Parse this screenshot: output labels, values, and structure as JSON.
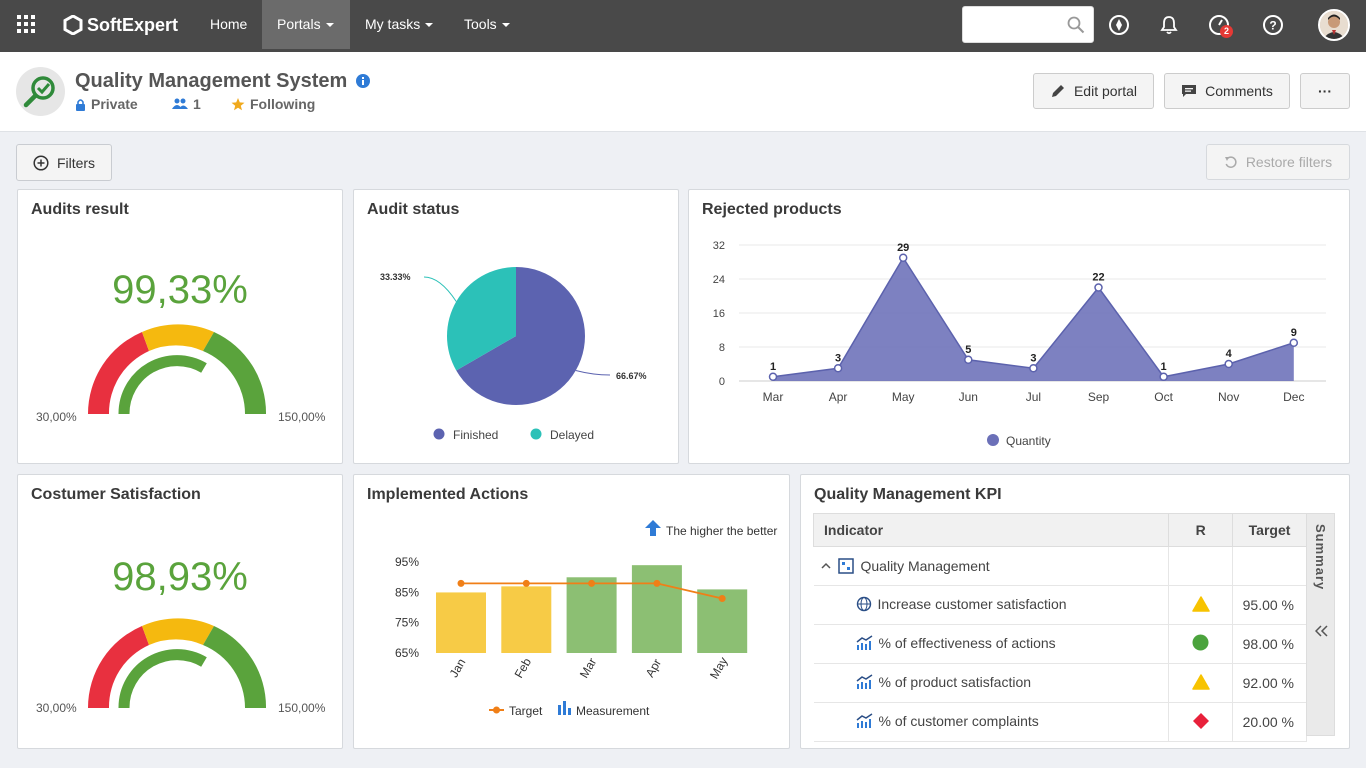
{
  "nav": {
    "brand": "SoftExpert",
    "items": [
      {
        "label": "Home",
        "dropdown": false,
        "active": false
      },
      {
        "label": "Portals",
        "dropdown": true,
        "active": true
      },
      {
        "label": "My tasks",
        "dropdown": true,
        "active": false
      },
      {
        "label": "Tools",
        "dropdown": true,
        "active": false
      }
    ],
    "search_placeholder": "",
    "notifications_badge": "2",
    "colors": {
      "bar": "#494949",
      "active": "#6b6b6b"
    }
  },
  "portal": {
    "title": "Quality Management System",
    "privacy": "Private",
    "members": "1",
    "following": "Following",
    "buttons": {
      "edit": "Edit portal",
      "comments": "Comments",
      "more": "···"
    }
  },
  "toolbar": {
    "filters": "Filters",
    "restore": "Restore filters"
  },
  "widgets": {
    "audits": {
      "title": "Audits result",
      "value": "99,33%",
      "min": "30,00%",
      "max": "150,00%"
    },
    "audit_status": {
      "title": "Audit status"
    },
    "rejected": {
      "title": "Rejected products"
    },
    "satisfaction": {
      "title": "Costumer Satisfaction",
      "value": "98,93%",
      "min": "30,00%",
      "max": "150,00%"
    },
    "actions": {
      "title": "Implemented Actions",
      "note": "The higher the better"
    },
    "kpi": {
      "title": "Quality Management KPI",
      "headers": {
        "indicator": "Indicator",
        "r": "R",
        "target": "Target"
      },
      "summary_label": "Summary",
      "group": "Quality Management",
      "rows": [
        {
          "indicator": "Increase customer satisfaction",
          "status": "triangle-yellow",
          "target": "95.00 %"
        },
        {
          "indicator": "% of effectiveness of actions",
          "status": "circle-green",
          "target": "98.00 %"
        },
        {
          "indicator": "% of product satisfaction",
          "status": "triangle-yellow",
          "target": "92.00 %"
        },
        {
          "indicator": "% of customer complaints",
          "status": "diamond-red",
          "target": "20.00 %"
        }
      ]
    }
  },
  "chart_data": [
    {
      "type": "gauge",
      "title": "Audits result",
      "value": 99.33,
      "range": [
        30,
        150
      ],
      "band_colors": [
        "#e8303f",
        "#f5b90f",
        "#5aa33c"
      ]
    },
    {
      "type": "pie",
      "title": "Audit status",
      "slices": [
        {
          "name": "Finished",
          "value": 66.67,
          "label": "66.67%",
          "color": "#5c63b0"
        },
        {
          "name": "Delayed",
          "value": 33.33,
          "label": "33.33%",
          "color": "#2cc1b8"
        }
      ]
    },
    {
      "type": "area",
      "title": "Rejected products",
      "categories": [
        "Mar",
        "Apr",
        "May",
        "Jun",
        "Jul",
        "Sep",
        "Oct",
        "Nov",
        "Dec"
      ],
      "series": [
        {
          "name": "Quantity",
          "values": [
            1,
            3,
            29,
            5,
            3,
            22,
            1,
            4,
            9
          ],
          "color": "#6b70b8"
        }
      ],
      "ylim": [
        0,
        32
      ],
      "yticks": [
        0,
        8,
        16,
        24,
        32
      ],
      "legend": "bottom",
      "grid": true
    },
    {
      "type": "gauge",
      "title": "Costumer Satisfaction",
      "value": 98.93,
      "range": [
        30,
        150
      ],
      "band_colors": [
        "#e8303f",
        "#f5b90f",
        "#5aa33c"
      ]
    },
    {
      "type": "bar",
      "title": "Implemented Actions",
      "categories": [
        "Jan",
        "Feb",
        "Mar",
        "Apr",
        "May"
      ],
      "series": [
        {
          "name": "Measurement",
          "values": [
            85,
            87,
            90,
            94,
            86
          ],
          "colors": [
            "#f7cb46",
            "#f7cb46",
            "#8cbf73",
            "#8cbf73",
            "#8cbf73"
          ]
        },
        {
          "name": "Target",
          "type": "line",
          "values": [
            88,
            88,
            88,
            88,
            83
          ],
          "color": "#f07f17"
        }
      ],
      "ylim": [
        65,
        100
      ],
      "yticks": [
        "65%",
        "75%",
        "85%",
        "95%"
      ],
      "legend": "bottom"
    }
  ]
}
